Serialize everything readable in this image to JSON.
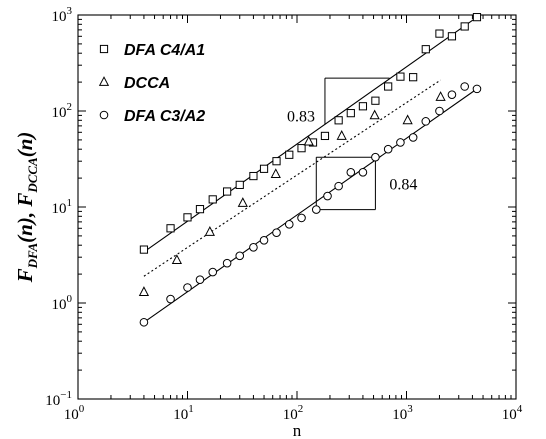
{
  "chart_data": {
    "type": "scatter",
    "x_scale": "log",
    "y_scale": "log",
    "xlim": [
      1,
      10000
    ],
    "ylim": [
      0.1,
      1000
    ],
    "xlabel": "n",
    "ylabel": "F_DFA(n), F_DCCA(n)",
    "x_ticks": [
      {
        "value": 1,
        "base": "10",
        "exp": "0"
      },
      {
        "value": 10,
        "base": "10",
        "exp": "1"
      },
      {
        "value": 100,
        "base": "10",
        "exp": "2"
      },
      {
        "value": 1000,
        "base": "10",
        "exp": "3"
      },
      {
        "value": 10000,
        "base": "10",
        "exp": "4"
      }
    ],
    "y_ticks": [
      {
        "value": 0.1,
        "base": "10",
        "exp": "−1"
      },
      {
        "value": 1,
        "base": "10",
        "exp": "0"
      },
      {
        "value": 10,
        "base": "10",
        "exp": "1"
      },
      {
        "value": 100,
        "base": "10",
        "exp": "2"
      },
      {
        "value": 1000,
        "base": "10",
        "exp": "3"
      }
    ],
    "grid": false,
    "legend_position": "top-left",
    "series": [
      {
        "name": "DFA C4/A1",
        "marker": "square",
        "x": [
          4,
          7,
          10,
          13,
          17,
          23,
          30,
          40,
          50,
          65,
          85,
          110,
          140,
          180,
          240,
          310,
          400,
          520,
          680,
          880,
          1150,
          1500,
          2000,
          2600,
          3400,
          4400
        ],
        "y": [
          3.6,
          6,
          7.8,
          9.5,
          12,
          14.5,
          17,
          21,
          25,
          30,
          35,
          41,
          47,
          55,
          80,
          95,
          112,
          128,
          180,
          228,
          225,
          440,
          640,
          600,
          760,
          950
        ],
        "fit": {
          "x": [
            4,
            4400
          ],
          "y": [
            3.4,
            950
          ]
        }
      },
      {
        "name": "DCCA",
        "marker": "triangle",
        "x": [
          4,
          8,
          16,
          32,
          64,
          128,
          256,
          512,
          1024,
          2048
        ],
        "y": [
          1.3,
          2.8,
          5.5,
          11,
          22,
          48,
          55,
          90,
          80,
          140
        ],
        "fit": {
          "x": [
            4,
            2048
          ],
          "y": [
            1.9,
            210
          ]
        }
      },
      {
        "name": "DFA C3/A2",
        "marker": "circle",
        "x": [
          4,
          7,
          10,
          13,
          17,
          23,
          30,
          40,
          50,
          65,
          85,
          110,
          150,
          190,
          240,
          310,
          400,
          520,
          680,
          880,
          1150,
          1500,
          2000,
          2600,
          3400,
          4400
        ],
        "y": [
          0.63,
          1.1,
          1.45,
          1.75,
          2.1,
          2.6,
          3.1,
          3.8,
          4.5,
          5.4,
          6.6,
          7.7,
          9.4,
          13,
          16.5,
          23,
          23,
          33,
          40,
          47,
          53,
          78,
          100,
          148,
          180,
          170
        ],
        "fit": {
          "x": [
            4,
            4400
          ],
          "y": [
            0.63,
            170
          ]
        }
      }
    ],
    "annotations": [
      {
        "text": "0.83",
        "slope_box": {
          "x1": 180,
          "x2": 700,
          "y1": 72,
          "y2": 220
        }
      },
      {
        "text": "0.84",
        "slope_box": {
          "x1": 150,
          "x2": 520,
          "y1": 9.4,
          "y2": 33
        }
      }
    ]
  }
}
